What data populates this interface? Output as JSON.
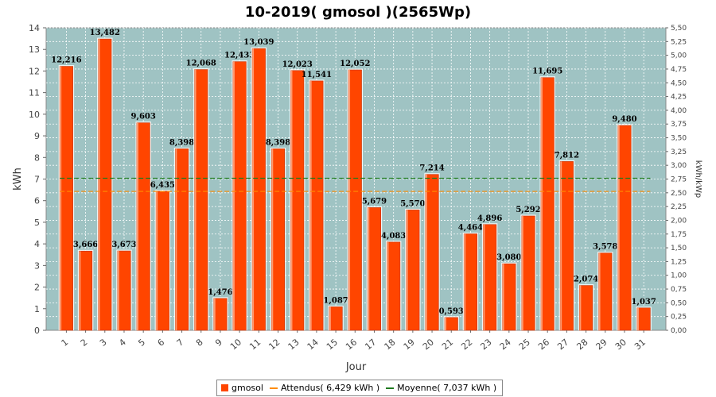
{
  "chart_data": {
    "type": "bar",
    "title": "10-2019( gmosol )(2565Wp)",
    "xlabel": "Jour",
    "ylabel": "kWh",
    "ylabel_right": "kWh/kWp",
    "ylim": [
      0,
      14
    ],
    "ylim_right": [
      0,
      5.5
    ],
    "grid": true,
    "legend_position": "bottom",
    "categories": [
      "1",
      "2",
      "3",
      "4",
      "5",
      "6",
      "7",
      "8",
      "9",
      "10",
      "11",
      "12",
      "13",
      "14",
      "15",
      "16",
      "17",
      "18",
      "19",
      "20",
      "21",
      "22",
      "23",
      "24",
      "25",
      "26",
      "27",
      "28",
      "29",
      "30",
      "31"
    ],
    "series": [
      {
        "name": "gmosol",
        "color": "#ff4500",
        "values": [
          12.216,
          3.666,
          13.482,
          3.673,
          9.603,
          6.435,
          8.398,
          12.068,
          1.476,
          12.433,
          13.039,
          8.398,
          12.023,
          11.541,
          1.087,
          12.052,
          5.679,
          4.083,
          5.57,
          7.214,
          0.593,
          4.464,
          4.896,
          3.08,
          5.292,
          11.695,
          7.812,
          2.074,
          3.578,
          9.48,
          1.037
        ],
        "labels": [
          "12,216",
          "3,666",
          "13,482",
          "3,673",
          "9,603",
          "6,435",
          "8,398",
          "12,068",
          "1,476",
          "12,433",
          "13,039",
          "8,398",
          "12,023",
          "11,541",
          "1,087",
          "12,052",
          "5,679",
          "4,083",
          "5,570",
          "7,214",
          "0,593",
          "4,464",
          "4,896",
          "3,080",
          "5,292",
          "11,695",
          "7,812",
          "2,074",
          "3,578",
          "9,480",
          "1,037"
        ]
      }
    ],
    "reference_lines": [
      {
        "name": "Attendus",
        "value": 6.429,
        "color": "#ff8c00",
        "style": "dashed"
      },
      {
        "name": "Moyenne",
        "value": 7.037,
        "color": "#1e7b1e",
        "style": "dashed"
      }
    ],
    "y_ticks": [
      "0",
      "1",
      "2",
      "3",
      "4",
      "5",
      "6",
      "7",
      "8",
      "9",
      "10",
      "11",
      "12",
      "13",
      "14"
    ],
    "y_right_ticks": [
      "0,00",
      "0,25",
      "0,50",
      "0,75",
      "1,00",
      "1,25",
      "1,50",
      "1,75",
      "2,00",
      "2,25",
      "2,50",
      "2,75",
      "3,00",
      "3,25",
      "3,50",
      "3,75",
      "4,00",
      "4,25",
      "4,50",
      "4,75",
      "5,00",
      "5,25",
      "5,50"
    ],
    "plot_background": "#9fc3c3",
    "grid_color": "#ffffff"
  },
  "legend": {
    "gmosol": "gmosol",
    "attendus": "Attendus( 6,429 kWh )",
    "moyenne": "Moyenne( 7,037 kWh )"
  }
}
